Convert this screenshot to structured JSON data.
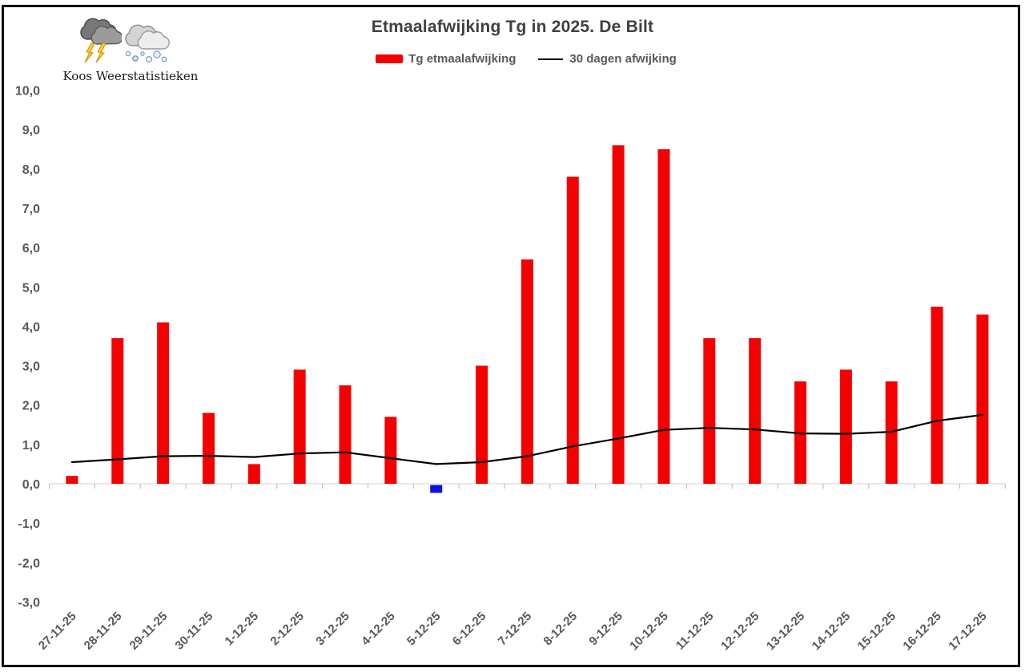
{
  "branding": {
    "name": "Koos Weerstatistieken",
    "icons": [
      "storm-cloud",
      "snow-cloud"
    ]
  },
  "chart_data": {
    "type": "bar",
    "title": "Etmaalafwijking Tg in 2025. De Bilt",
    "categories": [
      "27-11-25",
      "28-11-25",
      "29-11-25",
      "30-11-25",
      "1-12-25",
      "2-12-25",
      "3-12-25",
      "4-12-25",
      "5-12-25",
      "6-12-25",
      "7-12-25",
      "8-12-25",
      "9-12-25",
      "10-12-25",
      "11-12-25",
      "12-12-25",
      "13-12-25",
      "14-12-25",
      "15-12-25",
      "16-12-25",
      "17-12-25"
    ],
    "series": [
      {
        "name": "Tg etmaalafwijking",
        "type": "bar",
        "color": "#F40000",
        "negative_color": "#1010E0",
        "values": [
          0.2,
          3.7,
          4.1,
          1.8,
          0.5,
          2.9,
          2.5,
          1.7,
          -0.2,
          3.0,
          5.7,
          7.8,
          8.6,
          8.5,
          3.7,
          3.7,
          2.6,
          2.9,
          2.6,
          4.5,
          4.3
        ]
      },
      {
        "name": "30 dagen afwijking",
        "type": "line",
        "color": "#000000",
        "values": [
          0.55,
          0.62,
          0.7,
          0.71,
          0.68,
          0.77,
          0.8,
          0.65,
          0.5,
          0.55,
          0.7,
          0.95,
          1.15,
          1.37,
          1.42,
          1.38,
          1.28,
          1.27,
          1.32,
          1.6,
          1.75
        ]
      }
    ],
    "ylim": [
      -3.0,
      10.0
    ],
    "ytick_step": 1.0,
    "decimal_separator": ",",
    "grid": false,
    "legend_position": "top-center",
    "axis_label_color": "#595959",
    "baseline_color": "#D9D9D9",
    "tick_color": "#C0C0C0"
  }
}
